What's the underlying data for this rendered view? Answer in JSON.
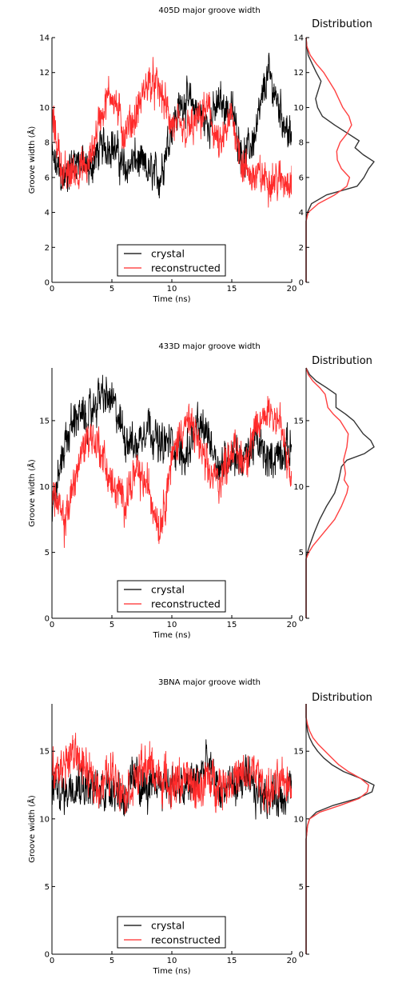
{
  "chart_data": [
    {
      "type": "line",
      "title": "405D major groove width",
      "xlabel": "Time (ns)",
      "ylabel": "Groove width (Å)",
      "xlim": [
        0,
        20
      ],
      "ylim": [
        0,
        14
      ],
      "xticks": [
        0,
        5,
        10,
        15,
        20
      ],
      "yticks": [
        0,
        2,
        4,
        6,
        8,
        10,
        12,
        14
      ],
      "legend_position": "bottom-center",
      "series": [
        {
          "name": "crystal",
          "color": "#000000",
          "x": [
            0,
            1,
            2,
            3,
            4,
            5,
            6,
            7,
            8,
            9,
            10,
            11,
            12,
            13,
            14,
            15,
            16,
            17,
            18,
            19,
            20
          ],
          "y": [
            7.0,
            5.8,
            7.2,
            6.3,
            7.6,
            8.0,
            6.5,
            7.0,
            6.3,
            6.0,
            9.0,
            10.5,
            10.0,
            9.0,
            10.3,
            9.8,
            7.0,
            8.5,
            12.0,
            10.0,
            8.0
          ]
        },
        {
          "name": "reconstructed",
          "color": "#ff2a2a",
          "x": [
            0,
            1,
            2,
            3,
            4,
            5,
            6,
            7,
            8,
            9,
            10,
            11,
            12,
            13,
            14,
            15,
            16,
            17,
            18,
            19,
            20
          ],
          "y": [
            9.5,
            6.0,
            6.5,
            6.5,
            9.5,
            11.0,
            8.5,
            9.5,
            11.5,
            11.0,
            9.0,
            8.5,
            9.0,
            10.0,
            7.5,
            9.5,
            6.5,
            6.0,
            6.0,
            5.8,
            6.0
          ]
        }
      ]
    },
    {
      "type": "line",
      "title": "433D major groove width",
      "xlabel": "Time (ns)",
      "ylabel": "Groove width (Å)",
      "xlim": [
        0,
        20
      ],
      "ylim": [
        0,
        19
      ],
      "xticks": [
        0,
        5,
        10,
        15,
        20
      ],
      "yticks": [
        0,
        5,
        10,
        15
      ],
      "legend_position": "bottom-center",
      "series": [
        {
          "name": "crystal",
          "color": "#000000",
          "x": [
            0,
            1,
            2,
            3,
            4,
            5,
            6,
            7,
            8,
            9,
            10,
            11,
            12,
            13,
            14,
            15,
            16,
            17,
            18,
            19,
            20
          ],
          "y": [
            8.0,
            13.0,
            15.5,
            15.0,
            17.0,
            16.5,
            14.0,
            13.0,
            15.0,
            13.0,
            13.5,
            12.0,
            14.5,
            14.0,
            11.5,
            12.5,
            12.0,
            13.5,
            12.0,
            12.5,
            13.0
          ]
        },
        {
          "name": "reconstructed",
          "color": "#ff2a2a",
          "x": [
            0,
            1,
            2,
            3,
            4,
            5,
            6,
            7,
            8,
            9,
            10,
            11,
            12,
            13,
            14,
            15,
            16,
            17,
            18,
            19,
            20
          ],
          "y": [
            10.0,
            7.0,
            11.0,
            14.0,
            13.0,
            10.0,
            9.0,
            11.0,
            10.0,
            7.0,
            12.0,
            15.0,
            14.0,
            11.0,
            10.5,
            13.0,
            12.0,
            14.0,
            16.0,
            15.0,
            10.0
          ]
        }
      ]
    },
    {
      "type": "line",
      "title": "3BNA major groove width",
      "xlabel": "Time (ns)",
      "ylabel": "Groove width (Å)",
      "xlim": [
        0,
        20
      ],
      "ylim": [
        0,
        18.5
      ],
      "xticks": [
        0,
        5,
        10,
        15,
        20
      ],
      "yticks": [
        0,
        5,
        10,
        15
      ],
      "legend_position": "bottom-center",
      "series": [
        {
          "name": "crystal",
          "color": "#000000",
          "x": [
            0,
            1,
            2,
            3,
            4,
            5,
            6,
            7,
            8,
            9,
            10,
            11,
            12,
            13,
            14,
            15,
            16,
            17,
            18,
            19,
            20
          ],
          "y": [
            12.5,
            12.0,
            13.0,
            12.5,
            12.0,
            12.5,
            11.5,
            13.0,
            12.0,
            13.0,
            12.5,
            12.0,
            13.0,
            14.0,
            12.0,
            12.5,
            13.0,
            12.0,
            12.0,
            11.5,
            12.5
          ]
        },
        {
          "name": "reconstructed",
          "color": "#ff2a2a",
          "x": [
            0,
            1,
            2,
            3,
            4,
            5,
            6,
            7,
            8,
            9,
            10,
            11,
            12,
            13,
            14,
            15,
            16,
            17,
            18,
            19,
            20
          ],
          "y": [
            13.0,
            14.0,
            15.0,
            13.0,
            12.5,
            13.5,
            12.0,
            13.0,
            14.0,
            13.0,
            12.5,
            13.0,
            12.0,
            13.0,
            12.5,
            13.0,
            13.0,
            13.5,
            12.0,
            12.5,
            13.0
          ]
        }
      ]
    }
  ],
  "distribution": {
    "title": "Distribution",
    "panels": [
      {
        "ylim": [
          0,
          14
        ],
        "yticks": [
          0,
          2,
          4,
          6,
          8,
          10,
          12,
          14
        ],
        "series": [
          {
            "name": "crystal",
            "color": "#333333",
            "y": [
              0,
              3.5,
              4.0,
              4.5,
              5.0,
              5.5,
              6.0,
              6.5,
              6.9,
              7.3,
              7.7,
              8.1,
              8.5,
              9.0,
              9.5,
              10.0,
              10.5,
              11.0,
              11.5,
              12.0,
              12.5,
              13.0,
              13.5,
              14.0
            ],
            "density": [
              0,
              0.0,
              0.02,
              0.08,
              0.3,
              0.75,
              0.85,
              0.92,
              1.0,
              0.84,
              0.72,
              0.78,
              0.62,
              0.42,
              0.24,
              0.17,
              0.14,
              0.18,
              0.22,
              0.15,
              0.09,
              0.03,
              0.01,
              0.0
            ]
          },
          {
            "name": "reconstructed",
            "color": "#ff4040",
            "y": [
              0,
              3.5,
              4.0,
              4.5,
              5.0,
              5.5,
              6.0,
              6.5,
              7.0,
              7.5,
              8.0,
              8.5,
              9.0,
              9.5,
              10.0,
              10.5,
              11.0,
              11.5,
              12.0,
              12.5,
              13.0,
              13.5,
              14.0
            ],
            "density": [
              0,
              0.0,
              0.03,
              0.18,
              0.42,
              0.6,
              0.64,
              0.52,
              0.46,
              0.45,
              0.5,
              0.6,
              0.67,
              0.63,
              0.54,
              0.48,
              0.42,
              0.34,
              0.26,
              0.15,
              0.06,
              0.01,
              0.0
            ]
          }
        ]
      },
      {
        "ylim": [
          0,
          19
        ],
        "yticks": [
          0,
          5,
          10,
          15
        ],
        "series": [
          {
            "name": "crystal",
            "color": "#333333",
            "y": [
              0,
              4.5,
              5.0,
              5.5,
              6.5,
              7.5,
              8.5,
              9.5,
              10.5,
              11.5,
              12.0,
              12.5,
              13.0,
              13.5,
              14.0,
              15.0,
              15.5,
              16.0,
              17.0,
              17.5,
              18.0,
              18.5,
              19.0
            ],
            "density": [
              0,
              0.0,
              0.02,
              0.05,
              0.12,
              0.2,
              0.3,
              0.42,
              0.48,
              0.52,
              0.6,
              0.86,
              1.0,
              0.95,
              0.84,
              0.7,
              0.58,
              0.44,
              0.44,
              0.3,
              0.15,
              0.05,
              0.0
            ]
          },
          {
            "name": "reconstructed",
            "color": "#ff4040",
            "y": [
              0,
              4.5,
              5.0,
              5.5,
              6.5,
              7.5,
              8.5,
              9.5,
              10.0,
              10.5,
              11.0,
              12.0,
              13.0,
              14.0,
              15.0,
              15.5,
              16.0,
              17.0,
              17.5,
              18.0,
              18.5,
              19.0
            ],
            "density": [
              0,
              0.0,
              0.04,
              0.1,
              0.26,
              0.42,
              0.52,
              0.6,
              0.62,
              0.56,
              0.58,
              0.55,
              0.6,
              0.62,
              0.5,
              0.4,
              0.32,
              0.28,
              0.2,
              0.1,
              0.03,
              0.0
            ]
          }
        ]
      },
      {
        "ylim": [
          0,
          18.5
        ],
        "yticks": [
          0,
          5,
          10,
          15
        ],
        "series": [
          {
            "name": "crystal",
            "color": "#333333",
            "y": [
              0,
              8.5,
              9.0,
              9.5,
              10.0,
              10.5,
              11.0,
              11.5,
              12.0,
              12.5,
              13.0,
              13.5,
              14.0,
              14.5,
              15.0,
              15.5,
              16.0,
              16.5,
              17.0,
              17.5,
              18.5
            ],
            "density": [
              0,
              0.0,
              0.01,
              0.02,
              0.05,
              0.15,
              0.4,
              0.75,
              0.97,
              1.0,
              0.8,
              0.55,
              0.38,
              0.26,
              0.17,
              0.1,
              0.05,
              0.02,
              0.01,
              0.0,
              0.0
            ]
          },
          {
            "name": "reconstructed",
            "color": "#ff4040",
            "y": [
              0,
              8.5,
              9.0,
              9.5,
              10.0,
              10.5,
              11.0,
              11.5,
              12.0,
              12.5,
              13.0,
              13.5,
              14.0,
              14.5,
              15.0,
              15.5,
              16.0,
              16.5,
              17.0,
              17.5,
              18.5
            ],
            "density": [
              0,
              0.0,
              0.01,
              0.02,
              0.05,
              0.2,
              0.5,
              0.78,
              0.9,
              0.92,
              0.8,
              0.62,
              0.48,
              0.38,
              0.28,
              0.18,
              0.1,
              0.05,
              0.02,
              0.0,
              0.0
            ]
          }
        ]
      }
    ]
  }
}
